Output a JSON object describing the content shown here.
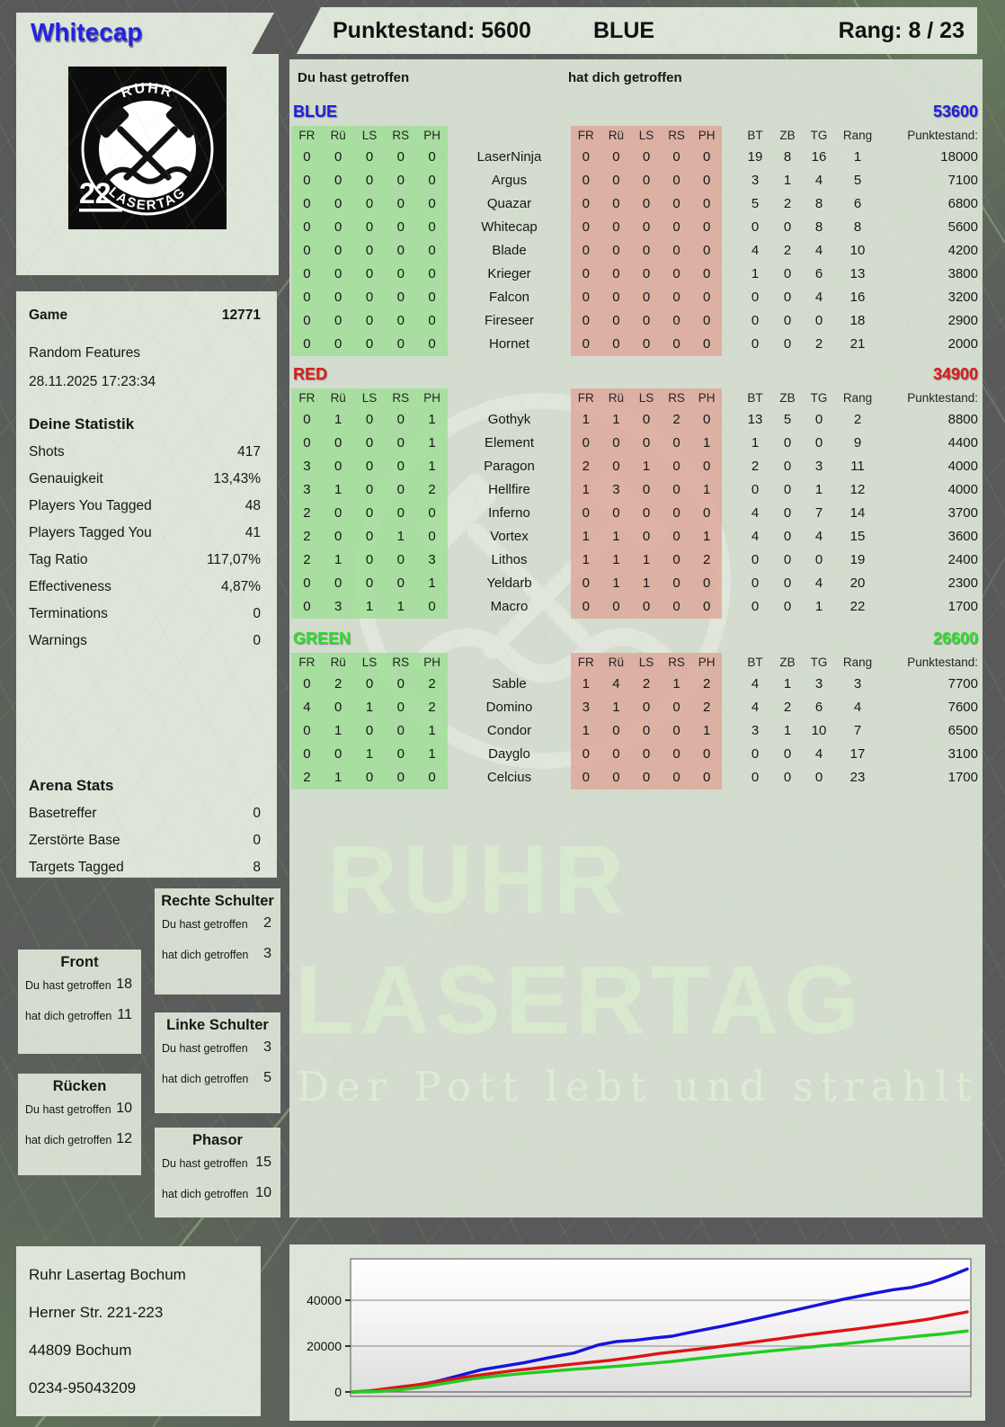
{
  "header": {
    "player_name": "Whitecap",
    "score_label": "Punktestand: 5600",
    "team_label": "BLUE",
    "rank_label": "Rang: 8 / 23"
  },
  "logo": {
    "arc_top": "RUHR",
    "arc_bottom": "LASERTAG",
    "badge": "22"
  },
  "hit_headers": {
    "left": "Du hast getroffen",
    "right": "hat dich getroffen"
  },
  "game_info": {
    "label": "Game",
    "number": "12771",
    "mode": "Random Features",
    "datetime": "28.11.2025 17:23:34"
  },
  "your_stats": {
    "title": "Deine Statistik",
    "rows": [
      {
        "label": "Shots",
        "value": "417"
      },
      {
        "label": "Genauigkeit",
        "value": "13,43%"
      },
      {
        "label": "Players You Tagged",
        "value": "48"
      },
      {
        "label": "Players Tagged You",
        "value": "41"
      },
      {
        "label": "Tag Ratio",
        "value": "117,07%"
      },
      {
        "label": "Effectiveness",
        "value": "4,87%"
      },
      {
        "label": "Terminations",
        "value": "0"
      },
      {
        "label": "Warnings",
        "value": "0"
      }
    ]
  },
  "arena_stats": {
    "title": "Arena Stats",
    "rows": [
      {
        "label": "Basetreffer",
        "value": "0"
      },
      {
        "label": "Zerstörte Base",
        "value": "0"
      },
      {
        "label": "Targets Tagged",
        "value": "8"
      }
    ]
  },
  "scoreboard": {
    "hit_columns": [
      "FR",
      "Rü",
      "LS",
      "RS",
      "PH"
    ],
    "stat_columns": [
      "BT",
      "ZB",
      "TG",
      "Rang",
      "Punktestand:"
    ],
    "teams": [
      {
        "name": "BLUE",
        "color": "#1d1de0",
        "total": "53600",
        "players": [
          {
            "name": "LaserNinja",
            "you_hit": [
              0,
              0,
              0,
              0,
              0
            ],
            "hit_you": [
              0,
              0,
              0,
              0,
              0
            ],
            "bt": 19,
            "zb": 8,
            "tg": 16,
            "rang": 1,
            "punkte": 18000
          },
          {
            "name": "Argus",
            "you_hit": [
              0,
              0,
              0,
              0,
              0
            ],
            "hit_you": [
              0,
              0,
              0,
              0,
              0
            ],
            "bt": 3,
            "zb": 1,
            "tg": 4,
            "rang": 5,
            "punkte": 7100
          },
          {
            "name": "Quazar",
            "you_hit": [
              0,
              0,
              0,
              0,
              0
            ],
            "hit_you": [
              0,
              0,
              0,
              0,
              0
            ],
            "bt": 5,
            "zb": 2,
            "tg": 8,
            "rang": 6,
            "punkte": 6800
          },
          {
            "name": "Whitecap",
            "you_hit": [
              0,
              0,
              0,
              0,
              0
            ],
            "hit_you": [
              0,
              0,
              0,
              0,
              0
            ],
            "bt": 0,
            "zb": 0,
            "tg": 8,
            "rang": 8,
            "punkte": 5600
          },
          {
            "name": "Blade",
            "you_hit": [
              0,
              0,
              0,
              0,
              0
            ],
            "hit_you": [
              0,
              0,
              0,
              0,
              0
            ],
            "bt": 4,
            "zb": 2,
            "tg": 4,
            "rang": 10,
            "punkte": 4200
          },
          {
            "name": "Krieger",
            "you_hit": [
              0,
              0,
              0,
              0,
              0
            ],
            "hit_you": [
              0,
              0,
              0,
              0,
              0
            ],
            "bt": 1,
            "zb": 0,
            "tg": 6,
            "rang": 13,
            "punkte": 3800
          },
          {
            "name": "Falcon",
            "you_hit": [
              0,
              0,
              0,
              0,
              0
            ],
            "hit_you": [
              0,
              0,
              0,
              0,
              0
            ],
            "bt": 0,
            "zb": 0,
            "tg": 4,
            "rang": 16,
            "punkte": 3200
          },
          {
            "name": "Fireseer",
            "you_hit": [
              0,
              0,
              0,
              0,
              0
            ],
            "hit_you": [
              0,
              0,
              0,
              0,
              0
            ],
            "bt": 0,
            "zb": 0,
            "tg": 0,
            "rang": 18,
            "punkte": 2900
          },
          {
            "name": "Hornet",
            "you_hit": [
              0,
              0,
              0,
              0,
              0
            ],
            "hit_you": [
              0,
              0,
              0,
              0,
              0
            ],
            "bt": 0,
            "zb": 0,
            "tg": 2,
            "rang": 21,
            "punkte": 2000
          }
        ]
      },
      {
        "name": "RED",
        "color": "#d81d1d",
        "total": "34900",
        "players": [
          {
            "name": "Gothyk",
            "you_hit": [
              0,
              1,
              0,
              0,
              1
            ],
            "hit_you": [
              1,
              1,
              0,
              2,
              0
            ],
            "bt": 13,
            "zb": 5,
            "tg": 0,
            "rang": 2,
            "punkte": 8800
          },
          {
            "name": "Element",
            "you_hit": [
              0,
              0,
              0,
              0,
              1
            ],
            "hit_you": [
              0,
              0,
              0,
              0,
              1
            ],
            "bt": 1,
            "zb": 0,
            "tg": 0,
            "rang": 9,
            "punkte": 4400
          },
          {
            "name": "Paragon",
            "you_hit": [
              3,
              0,
              0,
              0,
              1
            ],
            "hit_you": [
              2,
              0,
              1,
              0,
              0
            ],
            "bt": 2,
            "zb": 0,
            "tg": 3,
            "rang": 11,
            "punkte": 4000
          },
          {
            "name": "Hellfire",
            "you_hit": [
              3,
              1,
              0,
              0,
              2
            ],
            "hit_you": [
              1,
              3,
              0,
              0,
              1
            ],
            "bt": 0,
            "zb": 0,
            "tg": 1,
            "rang": 12,
            "punkte": 4000
          },
          {
            "name": "Inferno",
            "you_hit": [
              2,
              0,
              0,
              0,
              0
            ],
            "hit_you": [
              0,
              0,
              0,
              0,
              0
            ],
            "bt": 4,
            "zb": 0,
            "tg": 7,
            "rang": 14,
            "punkte": 3700
          },
          {
            "name": "Vortex",
            "you_hit": [
              2,
              0,
              0,
              1,
              0
            ],
            "hit_you": [
              1,
              1,
              0,
              0,
              1
            ],
            "bt": 4,
            "zb": 0,
            "tg": 4,
            "rang": 15,
            "punkte": 3600
          },
          {
            "name": "Lithos",
            "you_hit": [
              2,
              1,
              0,
              0,
              3
            ],
            "hit_you": [
              1,
              1,
              1,
              0,
              2
            ],
            "bt": 0,
            "zb": 0,
            "tg": 0,
            "rang": 19,
            "punkte": 2400
          },
          {
            "name": "Yeldarb",
            "you_hit": [
              0,
              0,
              0,
              0,
              1
            ],
            "hit_you": [
              0,
              1,
              1,
              0,
              0
            ],
            "bt": 0,
            "zb": 0,
            "tg": 4,
            "rang": 20,
            "punkte": 2300
          },
          {
            "name": "Macro",
            "you_hit": [
              0,
              3,
              1,
              1,
              0
            ],
            "hit_you": [
              0,
              0,
              0,
              0,
              0
            ],
            "bt": 0,
            "zb": 0,
            "tg": 1,
            "rang": 22,
            "punkte": 1700
          }
        ]
      },
      {
        "name": "GREEN",
        "color": "#2ce02c",
        "total": "26600",
        "players": [
          {
            "name": "Sable",
            "you_hit": [
              0,
              2,
              0,
              0,
              2
            ],
            "hit_you": [
              1,
              4,
              2,
              1,
              2
            ],
            "bt": 4,
            "zb": 1,
            "tg": 3,
            "rang": 3,
            "punkte": 7700
          },
          {
            "name": "Domino",
            "you_hit": [
              4,
              0,
              1,
              0,
              2
            ],
            "hit_you": [
              3,
              1,
              0,
              0,
              2
            ],
            "bt": 4,
            "zb": 2,
            "tg": 6,
            "rang": 4,
            "punkte": 7600
          },
          {
            "name": "Condor",
            "you_hit": [
              0,
              1,
              0,
              0,
              1
            ],
            "hit_you": [
              1,
              0,
              0,
              0,
              1
            ],
            "bt": 3,
            "zb": 1,
            "tg": 10,
            "rang": 7,
            "punkte": 6500
          },
          {
            "name": "Dayglo",
            "you_hit": [
              0,
              0,
              1,
              0,
              1
            ],
            "hit_you": [
              0,
              0,
              0,
              0,
              0
            ],
            "bt": 0,
            "zb": 0,
            "tg": 4,
            "rang": 17,
            "punkte": 3100
          },
          {
            "name": "Celcius",
            "you_hit": [
              2,
              1,
              0,
              0,
              0
            ],
            "hit_you": [
              0,
              0,
              0,
              0,
              0
            ],
            "bt": 0,
            "zb": 0,
            "tg": 0,
            "rang": 23,
            "punkte": 1700
          }
        ]
      }
    ]
  },
  "body_parts": [
    {
      "title": "Rechte Schulter",
      "you_label": "Du hast getroffen",
      "you": "2",
      "them_label": "hat dich getroffen",
      "them": "3"
    },
    {
      "title": "Front",
      "you_label": "Du hast getroffen",
      "you": "18",
      "them_label": "hat dich getroffen",
      "them": "11"
    },
    {
      "title": "Linke Schulter",
      "you_label": "Du hast getroffen",
      "you": "3",
      "them_label": "hat dich getroffen",
      "them": "5"
    },
    {
      "title": "Rücken",
      "you_label": "Du hast getroffen",
      "you": "10",
      "them_label": "hat dich getroffen",
      "them": "12"
    },
    {
      "title": "Phasor",
      "you_label": "Du hast getroffen",
      "you": "15",
      "them_label": "hat dich getroffen",
      "them": "10"
    }
  ],
  "address": {
    "lines": [
      "Ruhr Lasertag Bochum",
      "Herner Str. 221-223",
      "44809 Bochum",
      "0234-95043209"
    ]
  },
  "watermark": {
    "line1": "RUHR",
    "line2": "LASERTAG",
    "slogan": "Der Pott lebt und strahlt"
  },
  "chart_data": {
    "type": "line",
    "title": "",
    "xlabel": "",
    "ylabel": "",
    "yticks": [
      0,
      20000,
      40000
    ],
    "ylim": [
      0,
      57600
    ],
    "grid": true,
    "legend": false,
    "series": [
      {
        "name": "BLUE",
        "color": "#1414dd",
        "final": 53600,
        "points": [
          [
            0,
            0
          ],
          [
            0.03,
            200
          ],
          [
            0.06,
            900
          ],
          [
            0.1,
            2600
          ],
          [
            0.14,
            4800
          ],
          [
            0.18,
            7600
          ],
          [
            0.21,
            9700
          ],
          [
            0.24,
            11000
          ],
          [
            0.28,
            12800
          ],
          [
            0.32,
            15000
          ],
          [
            0.36,
            17000
          ],
          [
            0.4,
            20500
          ],
          [
            0.43,
            22000
          ],
          [
            0.46,
            22500
          ],
          [
            0.49,
            23500
          ],
          [
            0.52,
            24300
          ],
          [
            0.55,
            26000
          ],
          [
            0.6,
            28600
          ],
          [
            0.65,
            31500
          ],
          [
            0.7,
            34500
          ],
          [
            0.75,
            37500
          ],
          [
            0.8,
            40500
          ],
          [
            0.85,
            43100
          ],
          [
            0.88,
            44600
          ],
          [
            0.91,
            45600
          ],
          [
            0.94,
            47600
          ],
          [
            0.97,
            50400
          ],
          [
            1.0,
            53600
          ]
        ]
      },
      {
        "name": "RED",
        "color": "#dd1414",
        "final": 34900,
        "points": [
          [
            0,
            0
          ],
          [
            0.03,
            500
          ],
          [
            0.06,
            1600
          ],
          [
            0.1,
            2900
          ],
          [
            0.14,
            4500
          ],
          [
            0.18,
            6300
          ],
          [
            0.22,
            7800
          ],
          [
            0.26,
            9200
          ],
          [
            0.3,
            10400
          ],
          [
            0.34,
            11600
          ],
          [
            0.38,
            12700
          ],
          [
            0.42,
            13800
          ],
          [
            0.46,
            15200
          ],
          [
            0.5,
            16800
          ],
          [
            0.54,
            18000
          ],
          [
            0.58,
            19200
          ],
          [
            0.62,
            20600
          ],
          [
            0.66,
            22000
          ],
          [
            0.7,
            23400
          ],
          [
            0.74,
            24900
          ],
          [
            0.78,
            26200
          ],
          [
            0.82,
            27500
          ],
          [
            0.86,
            28900
          ],
          [
            0.9,
            30300
          ],
          [
            0.94,
            31900
          ],
          [
            0.97,
            33400
          ],
          [
            1.0,
            34900
          ]
        ]
      },
      {
        "name": "GREEN",
        "color": "#21cc21",
        "final": 26600,
        "points": [
          [
            0,
            0
          ],
          [
            0.04,
            200
          ],
          [
            0.08,
            1000
          ],
          [
            0.12,
            2400
          ],
          [
            0.16,
            4200
          ],
          [
            0.2,
            5900
          ],
          [
            0.24,
            7100
          ],
          [
            0.28,
            8100
          ],
          [
            0.32,
            9000
          ],
          [
            0.36,
            9900
          ],
          [
            0.4,
            10600
          ],
          [
            0.44,
            11400
          ],
          [
            0.48,
            12300
          ],
          [
            0.52,
            13300
          ],
          [
            0.56,
            14500
          ],
          [
            0.6,
            15700
          ],
          [
            0.64,
            16800
          ],
          [
            0.68,
            17900
          ],
          [
            0.72,
            18900
          ],
          [
            0.76,
            20000
          ],
          [
            0.8,
            21000
          ],
          [
            0.84,
            22100
          ],
          [
            0.88,
            23200
          ],
          [
            0.92,
            24300
          ],
          [
            0.96,
            25300
          ],
          [
            1.0,
            26600
          ]
        ]
      }
    ]
  }
}
